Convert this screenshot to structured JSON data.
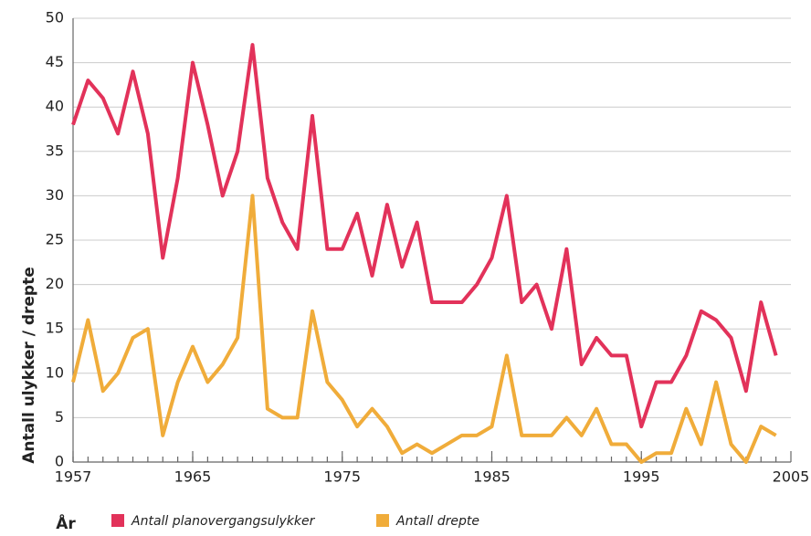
{
  "chart_data": {
    "type": "line",
    "x_label": "År",
    "y_label": "Antall ulykker / drepte",
    "x": [
      1957,
      1958,
      1959,
      1960,
      1961,
      1962,
      1963,
      1964,
      1965,
      1966,
      1967,
      1968,
      1969,
      1970,
      1971,
      1972,
      1973,
      1974,
      1975,
      1976,
      1977,
      1978,
      1979,
      1980,
      1981,
      1982,
      1983,
      1984,
      1985,
      1986,
      1987,
      1988,
      1989,
      1990,
      1991,
      1992,
      1993,
      1994,
      1995,
      1996,
      1997,
      1998,
      1999,
      2000,
      2001,
      2002,
      2003,
      2004
    ],
    "series": [
      {
        "name": "Antall planovergangsulykker",
        "color": "#e2325a",
        "values": [
          38,
          43,
          41,
          37,
          44,
          37,
          23,
          32,
          45,
          38,
          30,
          35,
          47,
          32,
          27,
          24,
          39,
          24,
          24,
          28,
          21,
          29,
          22,
          27,
          18,
          18,
          18,
          20,
          23,
          30,
          18,
          20,
          15,
          24,
          11,
          14,
          12,
          12,
          4,
          9,
          9,
          12,
          17,
          16,
          14,
          8,
          18,
          12
        ]
      },
      {
        "name": "Antall drepte",
        "color": "#f0ac3a",
        "values": [
          9,
          16,
          8,
          10,
          14,
          15,
          3,
          9,
          13,
          9,
          11,
          14,
          30,
          6,
          5,
          5,
          17,
          9,
          7,
          4,
          6,
          4,
          1,
          2,
          1,
          2,
          3,
          3,
          4,
          12,
          3,
          3,
          3,
          5,
          3,
          6,
          2,
          2,
          0,
          1,
          1,
          6,
          2,
          9,
          2,
          0,
          4,
          3
        ]
      }
    ],
    "xlim": [
      1957,
      2005
    ],
    "xticks": [
      1957,
      1965,
      1975,
      1985,
      1995,
      2005
    ],
    "ylim": [
      0,
      50
    ],
    "yticks": [
      0,
      5,
      10,
      15,
      20,
      25,
      30,
      35,
      40,
      45,
      50
    ],
    "grid": true,
    "legend": "bottom"
  }
}
